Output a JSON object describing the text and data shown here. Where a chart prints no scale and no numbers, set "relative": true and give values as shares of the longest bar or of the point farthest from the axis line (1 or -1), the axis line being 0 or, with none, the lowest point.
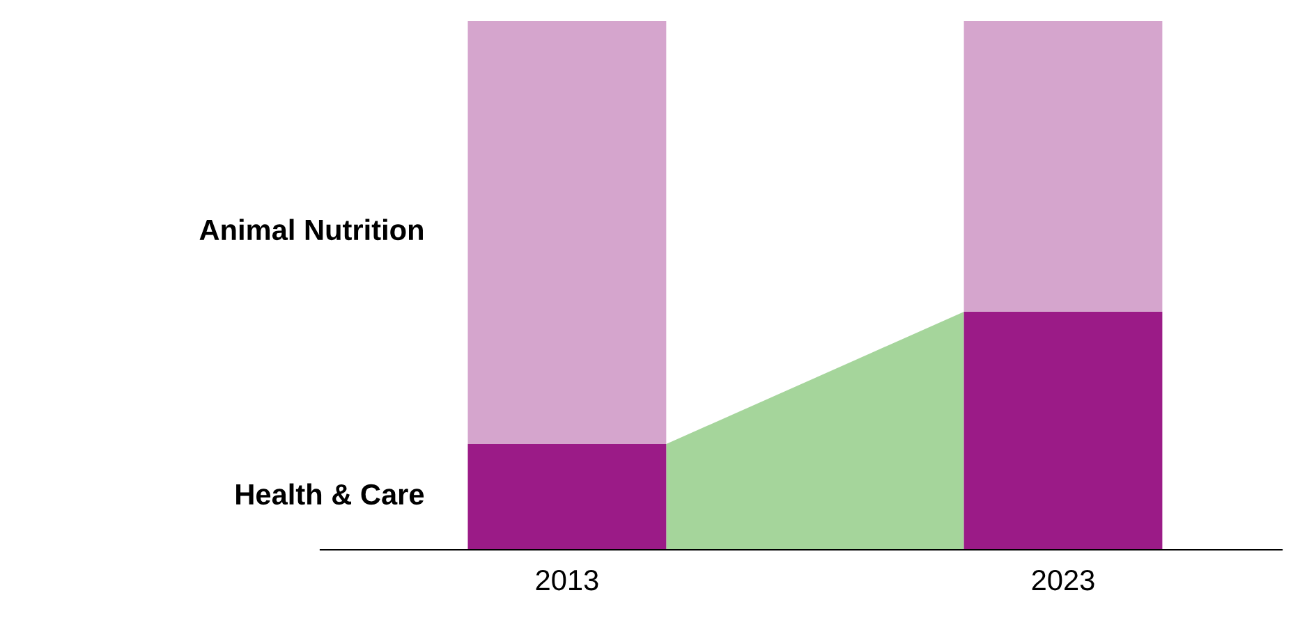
{
  "chart_data": {
    "type": "bar",
    "stacked": true,
    "relative": true,
    "categories": [
      "2013",
      "2023"
    ],
    "series": [
      {
        "name": "Health & Care",
        "color": "#9b1b87",
        "values": [
          0.2,
          0.45
        ]
      },
      {
        "name": "Animal Nutrition",
        "color": "#d5a5cd",
        "values": [
          0.8,
          0.55
        ]
      }
    ],
    "legend": false
  }
}
